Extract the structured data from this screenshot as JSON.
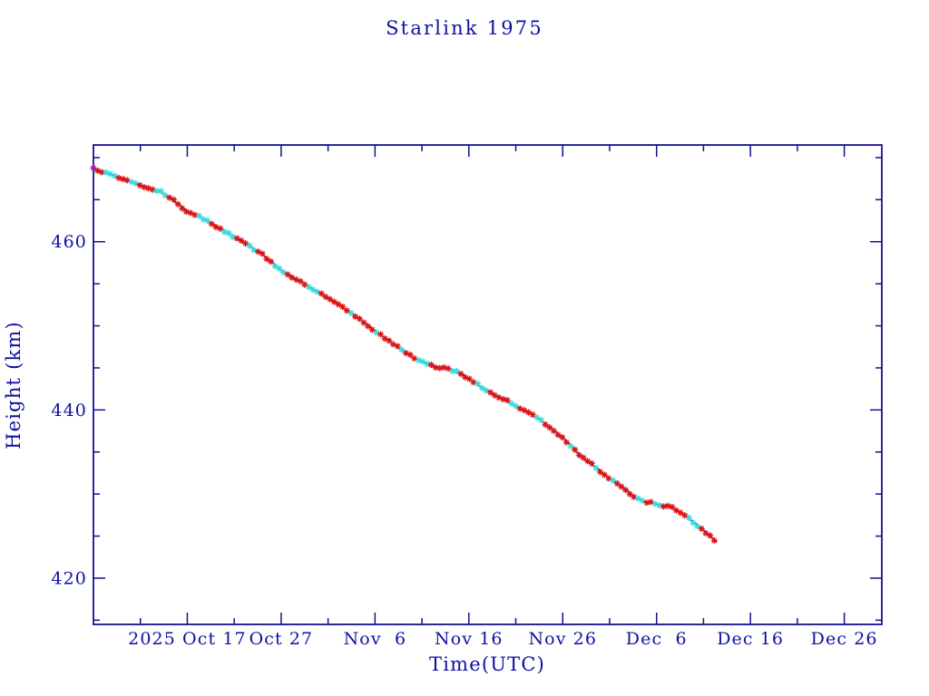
{
  "colors": {
    "background": "#ffffff",
    "text": "#0f0fa2",
    "axis": "#12128e",
    "line": "#000088",
    "marker_red": "#dd1414",
    "marker_cyan": "#3cdcdc",
    "marker_first": "#a020a0"
  },
  "chart_data": {
    "type": "line",
    "title": "Starlink 1975",
    "xlabel": "Time(UTC)",
    "ylabel": "Height (km)",
    "grid": false,
    "legend": null,
    "x_axis": {
      "unit": "days since 2025-10-01 00:00 UTC",
      "range": [
        6,
        90
      ],
      "major_ticks": [
        {
          "day": 16,
          "label": "2025 Oct 17"
        },
        {
          "day": 26,
          "label": "Oct 27"
        },
        {
          "day": 36,
          "label": "Nov  6"
        },
        {
          "day": 46,
          "label": "Nov 16"
        },
        {
          "day": 56,
          "label": "Nov 26"
        },
        {
          "day": 66,
          "label": "Dec  6"
        },
        {
          "day": 76,
          "label": "Dec 16"
        },
        {
          "day": 86,
          "label": "Dec 26"
        }
      ],
      "minor_ticks": [
        11,
        21,
        31,
        41,
        51,
        61,
        71,
        81
      ]
    },
    "y_axis": {
      "unit": "km",
      "range": [
        414.5,
        471.5
      ],
      "major_ticks": [
        420,
        440,
        460
      ],
      "minor_ticks": [
        415,
        425,
        430,
        435,
        445,
        450,
        455,
        465,
        470
      ]
    },
    "series": [
      {
        "name": "Starlink 1975 orbital height",
        "marker": "asterisk",
        "marker_step_days": 0.45,
        "pattern_seed": 977,
        "points": [
          [
            6.0,
            468.7
          ],
          [
            7.5,
            468.1
          ],
          [
            9.0,
            467.5
          ],
          [
            10.6,
            466.9
          ],
          [
            12.0,
            466.3
          ],
          [
            13.2,
            465.9
          ],
          [
            14.2,
            465.2
          ],
          [
            15.2,
            464.3
          ],
          [
            16.0,
            463.6
          ],
          [
            16.8,
            463.3
          ],
          [
            17.6,
            462.8
          ],
          [
            19.0,
            461.9
          ],
          [
            20.5,
            460.9
          ],
          [
            22.0,
            459.9
          ],
          [
            24.0,
            458.5
          ],
          [
            26.0,
            456.6
          ],
          [
            28.0,
            455.3
          ],
          [
            30.0,
            454.0
          ],
          [
            32.0,
            452.6
          ],
          [
            34.0,
            451.1
          ],
          [
            36.0,
            449.4
          ],
          [
            38.0,
            447.8
          ],
          [
            40.0,
            446.3
          ],
          [
            41.3,
            445.6
          ],
          [
            42.2,
            445.2
          ],
          [
            44.0,
            444.8
          ],
          [
            45.2,
            444.3
          ],
          [
            46.0,
            443.7
          ],
          [
            47.5,
            442.6
          ],
          [
            49.0,
            441.7
          ],
          [
            50.5,
            440.8
          ],
          [
            52.0,
            439.9
          ],
          [
            53.5,
            438.9
          ],
          [
            55.0,
            437.6
          ],
          [
            56.0,
            436.7
          ],
          [
            57.0,
            435.6
          ],
          [
            58.0,
            434.4
          ],
          [
            59.5,
            433.2
          ],
          [
            61.0,
            431.8
          ],
          [
            62.5,
            430.7
          ],
          [
            63.7,
            429.6
          ],
          [
            64.7,
            429.1
          ],
          [
            66.0,
            428.8
          ],
          [
            67.3,
            428.5
          ],
          [
            68.0,
            428.2
          ],
          [
            69.0,
            427.5
          ],
          [
            70.0,
            426.6
          ],
          [
            71.2,
            425.5
          ],
          [
            72.4,
            424.3
          ]
        ]
      }
    ]
  }
}
